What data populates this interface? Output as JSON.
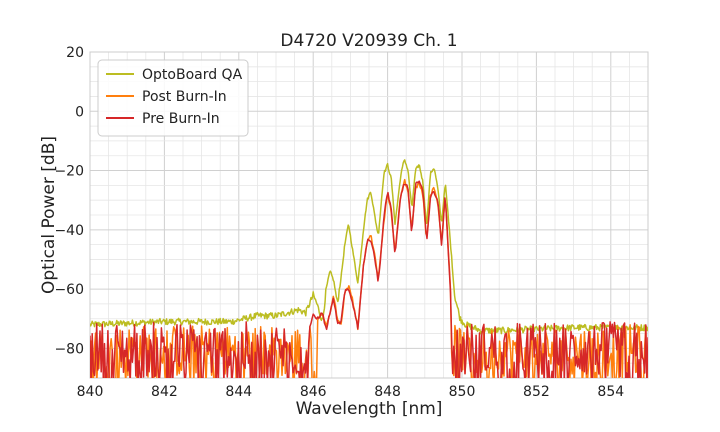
{
  "chart_data": {
    "type": "line",
    "title": "D4720 V20939 Ch. 1",
    "xlabel": "Wavelength [nm]",
    "ylabel": "Optical Power [dB]",
    "xlim": [
      840,
      855
    ],
    "ylim": [
      -90,
      20
    ],
    "xticks": [
      840,
      842,
      844,
      846,
      848,
      850,
      852,
      854
    ],
    "yticks": [
      20,
      0,
      -20,
      -40,
      -60,
      -80
    ],
    "xtick_labels": [
      "840",
      "842",
      "844",
      "846",
      "848",
      "850",
      "852",
      "854"
    ],
    "ytick_labels": [
      "20",
      "0",
      "−20",
      "−40",
      "−60",
      "−80"
    ],
    "grid": true,
    "legend_position": "top-left",
    "series": [
      {
        "name": "OptoBoard QA",
        "color": "#bcbd22",
        "style": "continuous",
        "x": [
          840.0,
          842.0,
          843.8,
          844.5,
          845.0,
          845.3,
          845.6,
          845.8,
          846.0,
          846.1,
          846.25,
          846.35,
          846.45,
          846.55,
          846.65,
          846.75,
          846.85,
          846.95,
          847.05,
          847.2,
          847.35,
          847.45,
          847.55,
          847.65,
          847.75,
          847.9,
          848.0,
          848.1,
          848.2,
          848.35,
          848.45,
          848.55,
          848.65,
          848.75,
          848.85,
          848.95,
          849.05,
          849.15,
          849.25,
          849.35,
          849.45,
          849.55,
          849.7,
          849.8,
          849.95,
          850.1,
          850.5,
          851.0,
          853.0,
          855.0
        ],
        "y": [
          -72,
          -71,
          -71,
          -69,
          -69,
          -68,
          -67,
          -68,
          -62,
          -65,
          -71,
          -60,
          -54,
          -57,
          -65,
          -56,
          -45,
          -38,
          -46,
          -58,
          -40,
          -30,
          -27,
          -35,
          -42,
          -21,
          -18,
          -23,
          -38,
          -22,
          -16,
          -20,
          -33,
          -20,
          -18,
          -24,
          -39,
          -21,
          -19,
          -26,
          -38,
          -24,
          -46,
          -62,
          -70,
          -72,
          -74,
          -74,
          -73,
          -73
        ]
      },
      {
        "name": "Post Burn-In",
        "color": "#ff7f0e",
        "style": "noisy",
        "noise_range": [
          -90,
          -72
        ],
        "x": [
          846.1,
          846.25,
          846.35,
          846.45,
          846.55,
          846.65,
          846.75,
          846.85,
          846.95,
          847.05,
          847.2,
          847.35,
          847.45,
          847.55,
          847.65,
          847.75,
          847.9,
          848.0,
          848.1,
          848.2,
          848.35,
          848.45,
          848.55,
          848.65,
          848.75,
          848.85,
          848.95,
          849.05,
          849.15,
          849.25,
          849.35,
          849.45,
          849.55,
          849.7
        ],
        "y": [
          -71,
          -68,
          -73,
          -68,
          -62,
          -70,
          -72,
          -61,
          -59,
          -63,
          -73,
          -52,
          -44,
          -42,
          -48,
          -57,
          -37,
          -28,
          -34,
          -48,
          -28,
          -23,
          -27,
          -40,
          -26,
          -24,
          -28,
          -44,
          -28,
          -26,
          -31,
          -44,
          -28,
          -62
        ]
      },
      {
        "name": "Pre Burn-In",
        "color": "#d62728",
        "style": "noisy",
        "noise_range": [
          -90,
          -71
        ],
        "x": [
          845.9,
          846.0,
          846.1,
          846.25,
          846.35,
          846.45,
          846.55,
          846.65,
          846.75,
          846.85,
          846.95,
          847.05,
          847.2,
          847.35,
          847.45,
          847.55,
          847.65,
          847.75,
          847.9,
          848.0,
          848.1,
          848.2,
          848.35,
          848.45,
          848.55,
          848.65,
          848.75,
          848.85,
          848.95,
          849.05,
          849.15,
          849.25,
          849.35,
          849.45,
          849.55,
          849.7
        ],
        "y": [
          -73,
          -69,
          -70,
          -68,
          -74,
          -68,
          -63,
          -72,
          -71,
          -61,
          -60,
          -64,
          -73,
          -52,
          -44,
          -43,
          -49,
          -58,
          -36,
          -27,
          -33,
          -49,
          -29,
          -24,
          -26,
          -42,
          -25,
          -23,
          -27,
          -44,
          -29,
          -27,
          -30,
          -45,
          -28,
          -63
        ]
      }
    ]
  }
}
